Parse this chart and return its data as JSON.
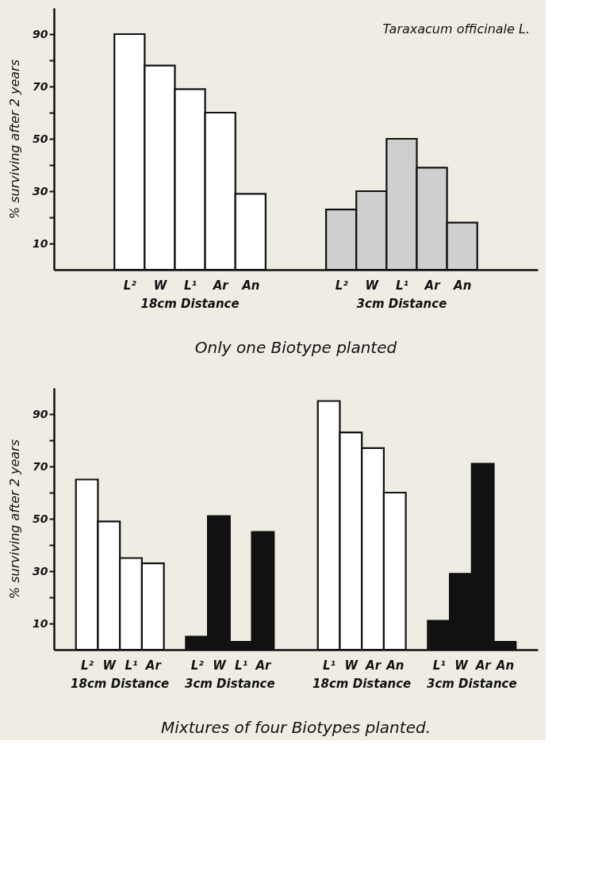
{
  "chart_data": [
    {
      "type": "bar",
      "title": "Only one Biotype planted",
      "ylabel": "% surviving after 2 years",
      "categories": [
        null,
        null,
        "L²",
        "W",
        "L¹",
        "Ar",
        "An",
        null,
        null,
        "L²",
        "W",
        "L¹",
        "Ar",
        "An",
        null,
        null
      ],
      "series": [
        {
          "color": "#ffffff",
          "values": [
            null,
            null,
            90,
            78,
            69,
            60,
            29,
            null,
            null,
            null,
            null,
            null,
            null,
            null,
            null,
            null
          ]
        },
        {
          "color": "#cfcfcf",
          "values": [
            null,
            null,
            null,
            null,
            null,
            null,
            null,
            null,
            null,
            23,
            30,
            50,
            39,
            18,
            null,
            null
          ]
        }
      ],
      "ylim": [
        0,
        100
      ],
      "yticks": [
        10,
        {
          "value": 20,
          "label": null
        },
        30,
        {
          "value": 40,
          "label": null
        },
        50,
        {
          "value": 60,
          "label": null
        },
        70,
        {
          "value": 80,
          "label": null
        },
        90
      ],
      "annotations": [
        "18cm Distance",
        "3cm Distance",
        "Taraxacum officinale L."
      ]
    },
    {
      "type": "bar",
      "title": "Mixtures of four Biotypes planted.",
      "ylabel": "% surviving after 2 years",
      "categories": [
        null,
        "L²",
        "W",
        "L¹",
        "Ar",
        null,
        "L²",
        "W",
        "L¹",
        "Ar",
        null,
        null,
        "L¹",
        "W",
        "Ar",
        "An",
        null,
        "L¹",
        "W",
        "Ar",
        "An",
        null
      ],
      "series": [
        {
          "color": "#ffffff",
          "values": [
            null,
            65,
            49,
            35,
            33,
            null,
            null,
            null,
            null,
            null,
            null,
            null,
            95,
            83,
            77,
            60,
            null,
            null,
            null,
            null,
            null,
            null
          ]
        },
        {
          "color": "#111111",
          "values": [
            null,
            null,
            null,
            null,
            null,
            null,
            5,
            51,
            3,
            45,
            null,
            null,
            null,
            null,
            null,
            null,
            null,
            11,
            29,
            71,
            3,
            null
          ]
        }
      ],
      "ylim": [
        0,
        100
      ],
      "yticks": [
        10,
        {
          "value": 20,
          "label": null
        },
        30,
        {
          "value": 40,
          "label": null
        },
        50,
        {
          "value": 60,
          "label": null
        },
        70,
        {
          "value": 80,
          "label": null
        },
        90
      ],
      "annotations": [
        "18cm Distance",
        "3cm Distance",
        "18cm Distance",
        "3cm Distance"
      ]
    }
  ]
}
